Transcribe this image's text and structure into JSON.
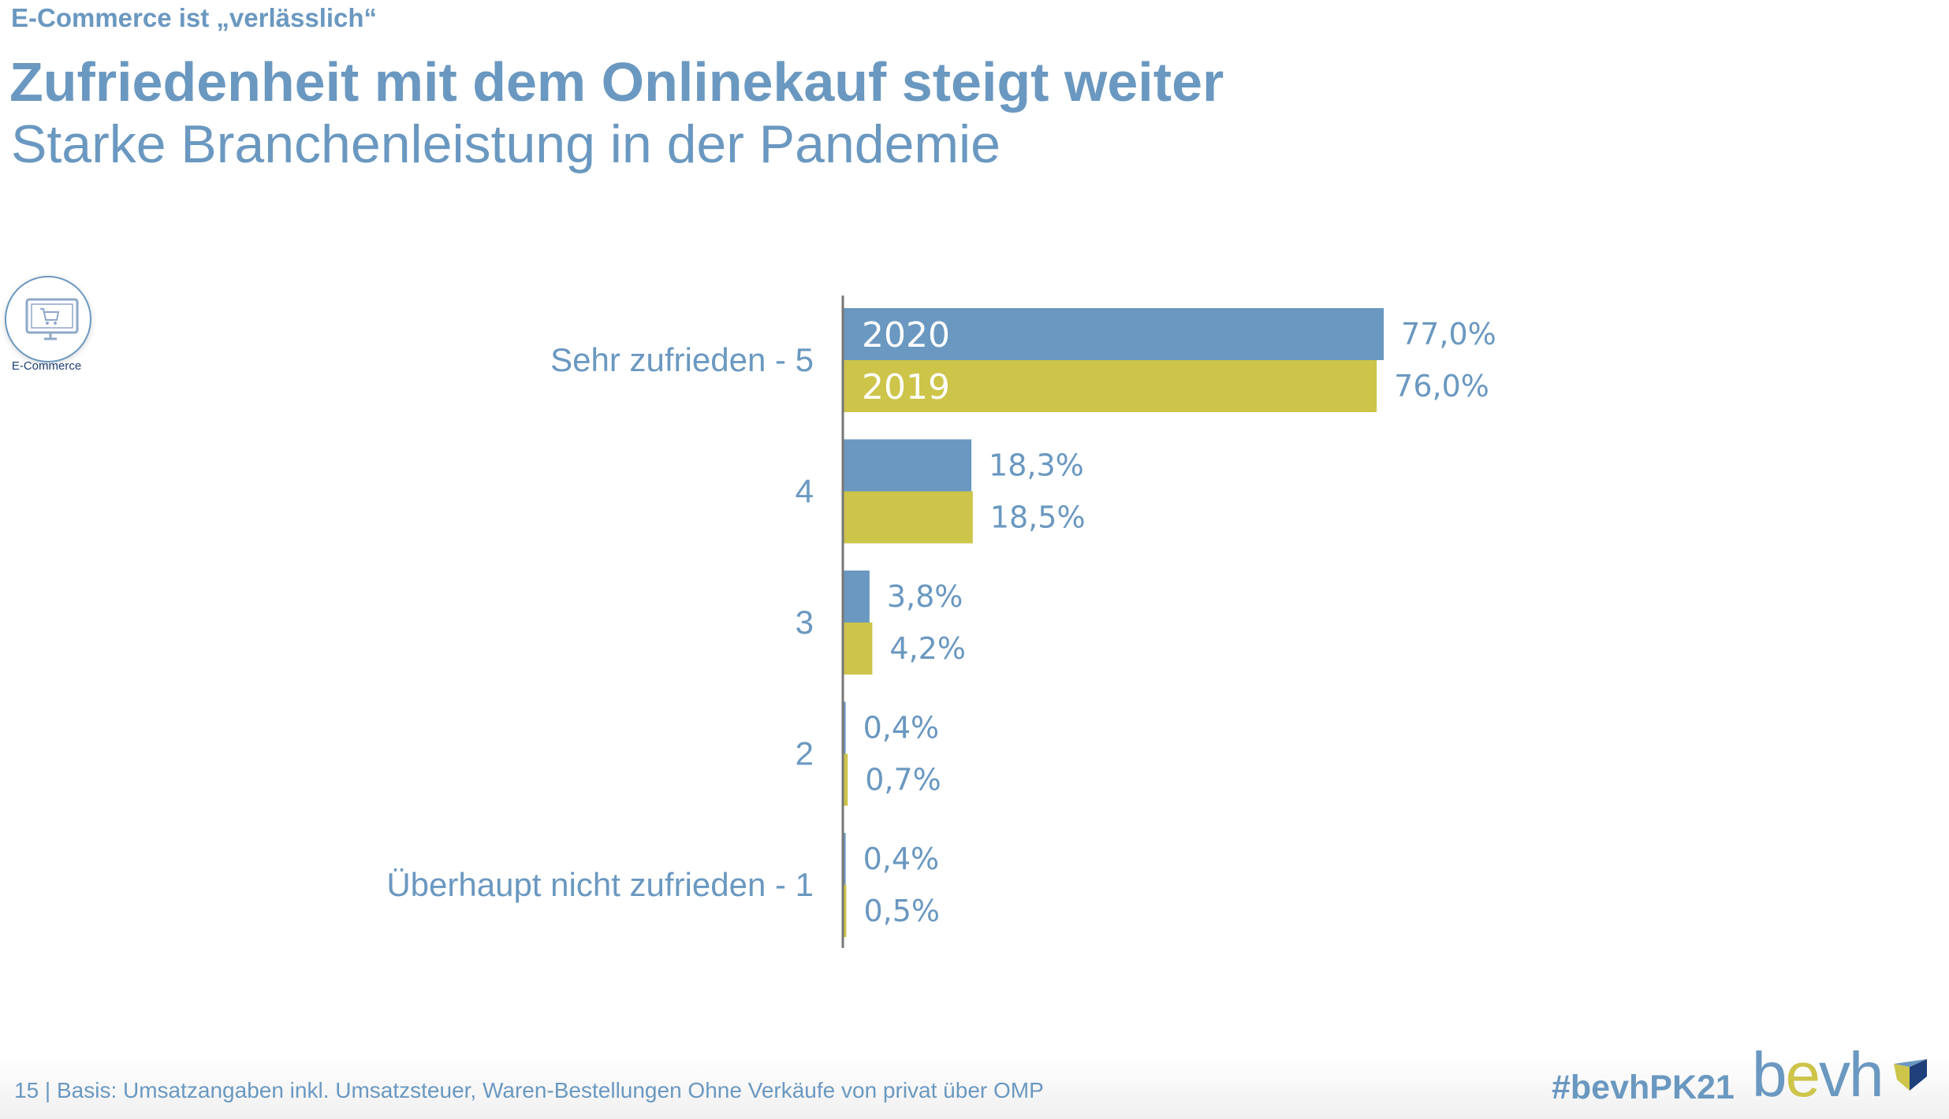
{
  "header": {
    "kicker": "E-Commerce ist „verlässlich“",
    "title": "Zufriedenheit mit dem Onlinekauf steigt weiter",
    "subtitle": "Starke Branchenleistung in der Pandemie"
  },
  "badge": {
    "icon": "monitor-cart-icon",
    "label": "E-Commerce"
  },
  "chart_data": {
    "type": "bar",
    "orientation": "horizontal",
    "categories": [
      "Sehr zufrieden - 5",
      "4",
      "3",
      "2",
      "Überhaupt nicht zufrieden - 1"
    ],
    "series": [
      {
        "name": "2020",
        "color": "#6a98c0",
        "values": [
          77.0,
          18.3,
          3.8,
          0.4,
          0.4
        ],
        "labels": [
          "77,0%",
          "18,3%",
          "3,8%",
          "0,4%",
          "0,4%"
        ]
      },
      {
        "name": "2019",
        "color": "#cdc44a",
        "values": [
          76.0,
          18.5,
          4.2,
          0.7,
          0.5
        ],
        "labels": [
          "76,0%",
          "18,5%",
          "4,2%",
          "0,7%",
          "0,5%"
        ]
      }
    ],
    "xlim": [
      0,
      100
    ],
    "grid": false,
    "legend": "inside-first-bars"
  },
  "footer": {
    "text": "15 | Basis: Umsatzangaben inkl. Umsatzsteuer, Waren-Bestellungen Ohne Verkäufe von privat über OMP",
    "hashtag": "#bevhPK21",
    "logo": {
      "b": "b",
      "e": "e",
      "vh": "vh"
    }
  }
}
